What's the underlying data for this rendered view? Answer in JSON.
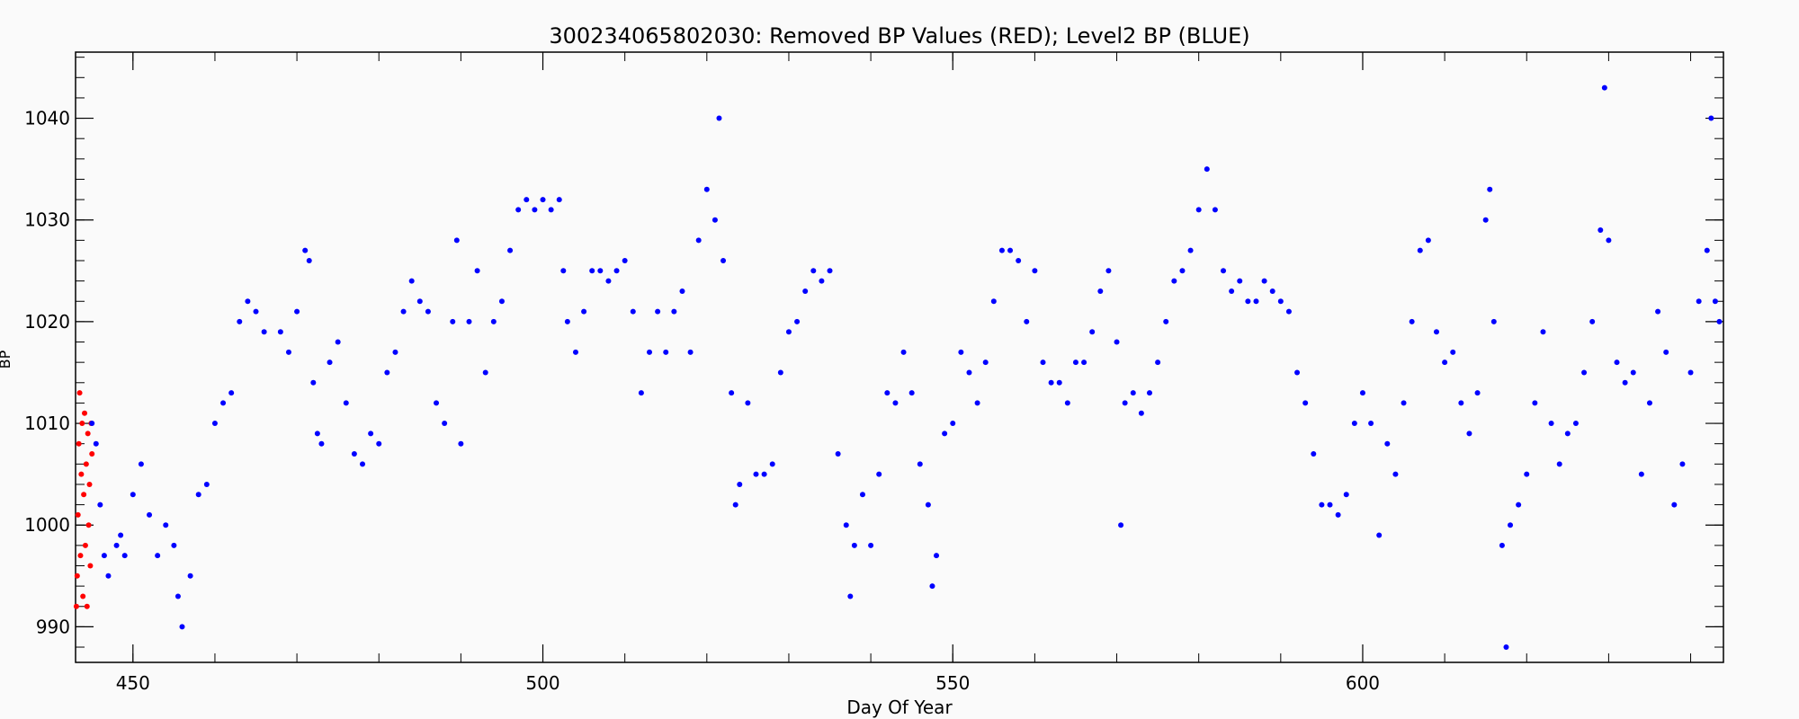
{
  "chart_data": {
    "type": "scatter",
    "title": "300234065802030: Removed BP Values (RED); Level2 BP (BLUE)",
    "xlabel": "Day Of Year",
    "ylabel": "BP",
    "xlim": [
      443,
      644
    ],
    "ylim": [
      986.5,
      1046.5
    ],
    "x_ticks": [
      450,
      500,
      550,
      600
    ],
    "y_ticks": [
      990,
      1000,
      1010,
      1020,
      1030,
      1040
    ],
    "grid": false,
    "legend": "none",
    "series": [
      {
        "color": "#ff0000",
        "points": [
          [
            443.1,
            992
          ],
          [
            443.2,
            995
          ],
          [
            443.3,
            1001
          ],
          [
            443.4,
            1008
          ],
          [
            443.5,
            1013
          ],
          [
            443.6,
            997
          ],
          [
            443.7,
            1005
          ],
          [
            443.8,
            1010
          ],
          [
            443.9,
            993
          ],
          [
            444.0,
            1003
          ],
          [
            444.1,
            1011
          ],
          [
            444.2,
            998
          ],
          [
            444.3,
            1006
          ],
          [
            444.4,
            992
          ],
          [
            444.5,
            1009
          ],
          [
            444.6,
            1000
          ],
          [
            444.7,
            1004
          ],
          [
            444.8,
            996
          ],
          [
            444.9,
            1010
          ],
          [
            445.0,
            1007
          ]
        ]
      },
      {
        "color": "#0000ff",
        "points": [
          [
            445.0,
            1010
          ],
          [
            445.5,
            1008
          ],
          [
            446.0,
            1002
          ],
          [
            446.5,
            997
          ],
          [
            447.0,
            995
          ],
          [
            448.0,
            998
          ],
          [
            448.5,
            999
          ],
          [
            449.0,
            997
          ],
          [
            450.0,
            1003
          ],
          [
            451.0,
            1006
          ],
          [
            452.0,
            1001
          ],
          [
            453.0,
            997
          ],
          [
            454.0,
            1000
          ],
          [
            455.0,
            998
          ],
          [
            455.5,
            993
          ],
          [
            456.0,
            990
          ],
          [
            457.0,
            995
          ],
          [
            458.0,
            1003
          ],
          [
            459.0,
            1004
          ],
          [
            460.0,
            1010
          ],
          [
            461.0,
            1012
          ],
          [
            462.0,
            1013
          ],
          [
            463.0,
            1020
          ],
          [
            464.0,
            1022
          ],
          [
            465.0,
            1021
          ],
          [
            466.0,
            1019
          ],
          [
            468.0,
            1019
          ],
          [
            469.0,
            1017
          ],
          [
            470.0,
            1021
          ],
          [
            471.0,
            1027
          ],
          [
            471.5,
            1026
          ],
          [
            472.0,
            1014
          ],
          [
            472.5,
            1009
          ],
          [
            473.0,
            1008
          ],
          [
            474.0,
            1016
          ],
          [
            475.0,
            1018
          ],
          [
            476.0,
            1012
          ],
          [
            477.0,
            1007
          ],
          [
            478.0,
            1006
          ],
          [
            479.0,
            1009
          ],
          [
            480.0,
            1008
          ],
          [
            481.0,
            1015
          ],
          [
            482.0,
            1017
          ],
          [
            483.0,
            1021
          ],
          [
            484.0,
            1024
          ],
          [
            485.0,
            1022
          ],
          [
            486.0,
            1021
          ],
          [
            487.0,
            1012
          ],
          [
            488.0,
            1010
          ],
          [
            489.0,
            1020
          ],
          [
            489.5,
            1028
          ],
          [
            490.0,
            1008
          ],
          [
            491.0,
            1020
          ],
          [
            492.0,
            1025
          ],
          [
            493.0,
            1015
          ],
          [
            494.0,
            1020
          ],
          [
            495.0,
            1022
          ],
          [
            496.0,
            1027
          ],
          [
            497.0,
            1031
          ],
          [
            498.0,
            1032
          ],
          [
            499.0,
            1031
          ],
          [
            500.0,
            1032
          ],
          [
            501.0,
            1031
          ],
          [
            502.0,
            1032
          ],
          [
            502.5,
            1025
          ],
          [
            503.0,
            1020
          ],
          [
            504.0,
            1017
          ],
          [
            505.0,
            1021
          ],
          [
            506.0,
            1025
          ],
          [
            507.0,
            1025
          ],
          [
            508.0,
            1024
          ],
          [
            509.0,
            1025
          ],
          [
            510.0,
            1026
          ],
          [
            511.0,
            1021
          ],
          [
            512.0,
            1013
          ],
          [
            513.0,
            1017
          ],
          [
            514.0,
            1021
          ],
          [
            515.0,
            1017
          ],
          [
            516.0,
            1021
          ],
          [
            517.0,
            1023
          ],
          [
            518.0,
            1017
          ],
          [
            519.0,
            1028
          ],
          [
            520.0,
            1033
          ],
          [
            521.0,
            1030
          ],
          [
            521.5,
            1040
          ],
          [
            522.0,
            1026
          ],
          [
            523.0,
            1013
          ],
          [
            523.5,
            1002
          ],
          [
            524.0,
            1004
          ],
          [
            525.0,
            1012
          ],
          [
            526.0,
            1005
          ],
          [
            527.0,
            1005
          ],
          [
            528.0,
            1006
          ],
          [
            529.0,
            1015
          ],
          [
            530.0,
            1019
          ],
          [
            531.0,
            1020
          ],
          [
            532.0,
            1023
          ],
          [
            533.0,
            1025
          ],
          [
            534.0,
            1024
          ],
          [
            535.0,
            1025
          ],
          [
            536.0,
            1007
          ],
          [
            537.0,
            1000
          ],
          [
            537.5,
            993
          ],
          [
            538.0,
            998
          ],
          [
            539.0,
            1003
          ],
          [
            540.0,
            998
          ],
          [
            541.0,
            1005
          ],
          [
            542.0,
            1013
          ],
          [
            543.0,
            1012
          ],
          [
            544.0,
            1017
          ],
          [
            545.0,
            1013
          ],
          [
            546.0,
            1006
          ],
          [
            547.0,
            1002
          ],
          [
            547.5,
            994
          ],
          [
            548.0,
            997
          ],
          [
            549.0,
            1009
          ],
          [
            550.0,
            1010
          ],
          [
            551.0,
            1017
          ],
          [
            552.0,
            1015
          ],
          [
            553.0,
            1012
          ],
          [
            554.0,
            1016
          ],
          [
            555.0,
            1022
          ],
          [
            556.0,
            1027
          ],
          [
            557.0,
            1027
          ],
          [
            558.0,
            1026
          ],
          [
            559.0,
            1020
          ],
          [
            560.0,
            1025
          ],
          [
            561.0,
            1016
          ],
          [
            562.0,
            1014
          ],
          [
            563.0,
            1014
          ],
          [
            564.0,
            1012
          ],
          [
            565.0,
            1016
          ],
          [
            566.0,
            1016
          ],
          [
            567.0,
            1019
          ],
          [
            568.0,
            1023
          ],
          [
            569.0,
            1025
          ],
          [
            570.0,
            1018
          ],
          [
            570.5,
            1000
          ],
          [
            571.0,
            1012
          ],
          [
            572.0,
            1013
          ],
          [
            573.0,
            1011
          ],
          [
            574.0,
            1013
          ],
          [
            575.0,
            1016
          ],
          [
            576.0,
            1020
          ],
          [
            577.0,
            1024
          ],
          [
            578.0,
            1025
          ],
          [
            579.0,
            1027
          ],
          [
            580.0,
            1031
          ],
          [
            581.0,
            1035
          ],
          [
            582.0,
            1031
          ],
          [
            583.0,
            1025
          ],
          [
            584.0,
            1023
          ],
          [
            585.0,
            1024
          ],
          [
            586.0,
            1022
          ],
          [
            587.0,
            1022
          ],
          [
            588.0,
            1024
          ],
          [
            589.0,
            1023
          ],
          [
            590.0,
            1022
          ],
          [
            591.0,
            1021
          ],
          [
            592.0,
            1015
          ],
          [
            593.0,
            1012
          ],
          [
            594.0,
            1007
          ],
          [
            595.0,
            1002
          ],
          [
            596.0,
            1002
          ],
          [
            597.0,
            1001
          ],
          [
            598.0,
            1003
          ],
          [
            599.0,
            1010
          ],
          [
            600.0,
            1013
          ],
          [
            601.0,
            1010
          ],
          [
            602.0,
            999
          ],
          [
            603.0,
            1008
          ],
          [
            604.0,
            1005
          ],
          [
            605.0,
            1012
          ],
          [
            606.0,
            1020
          ],
          [
            607.0,
            1027
          ],
          [
            608.0,
            1028
          ],
          [
            609.0,
            1019
          ],
          [
            610.0,
            1016
          ],
          [
            611.0,
            1017
          ],
          [
            612.0,
            1012
          ],
          [
            613.0,
            1009
          ],
          [
            614.0,
            1013
          ],
          [
            615.0,
            1030
          ],
          [
            615.5,
            1033
          ],
          [
            616.0,
            1020
          ],
          [
            617.0,
            998
          ],
          [
            617.5,
            988
          ],
          [
            618.0,
            1000
          ],
          [
            619.0,
            1002
          ],
          [
            620.0,
            1005
          ],
          [
            621.0,
            1012
          ],
          [
            622.0,
            1019
          ],
          [
            623.0,
            1010
          ],
          [
            624.0,
            1006
          ],
          [
            625.0,
            1009
          ],
          [
            626.0,
            1010
          ],
          [
            627.0,
            1015
          ],
          [
            628.0,
            1020
          ],
          [
            629.0,
            1029
          ],
          [
            629.5,
            1043
          ],
          [
            630.0,
            1028
          ],
          [
            631.0,
            1016
          ],
          [
            632.0,
            1014
          ],
          [
            633.0,
            1015
          ],
          [
            634.0,
            1005
          ],
          [
            635.0,
            1012
          ],
          [
            636.0,
            1021
          ],
          [
            637.0,
            1017
          ],
          [
            638.0,
            1002
          ],
          [
            639.0,
            1006
          ],
          [
            640.0,
            1015
          ],
          [
            641.0,
            1022
          ],
          [
            642.0,
            1027
          ],
          [
            642.5,
            1040
          ],
          [
            643.0,
            1022
          ],
          [
            643.5,
            1020
          ]
        ]
      }
    ]
  }
}
